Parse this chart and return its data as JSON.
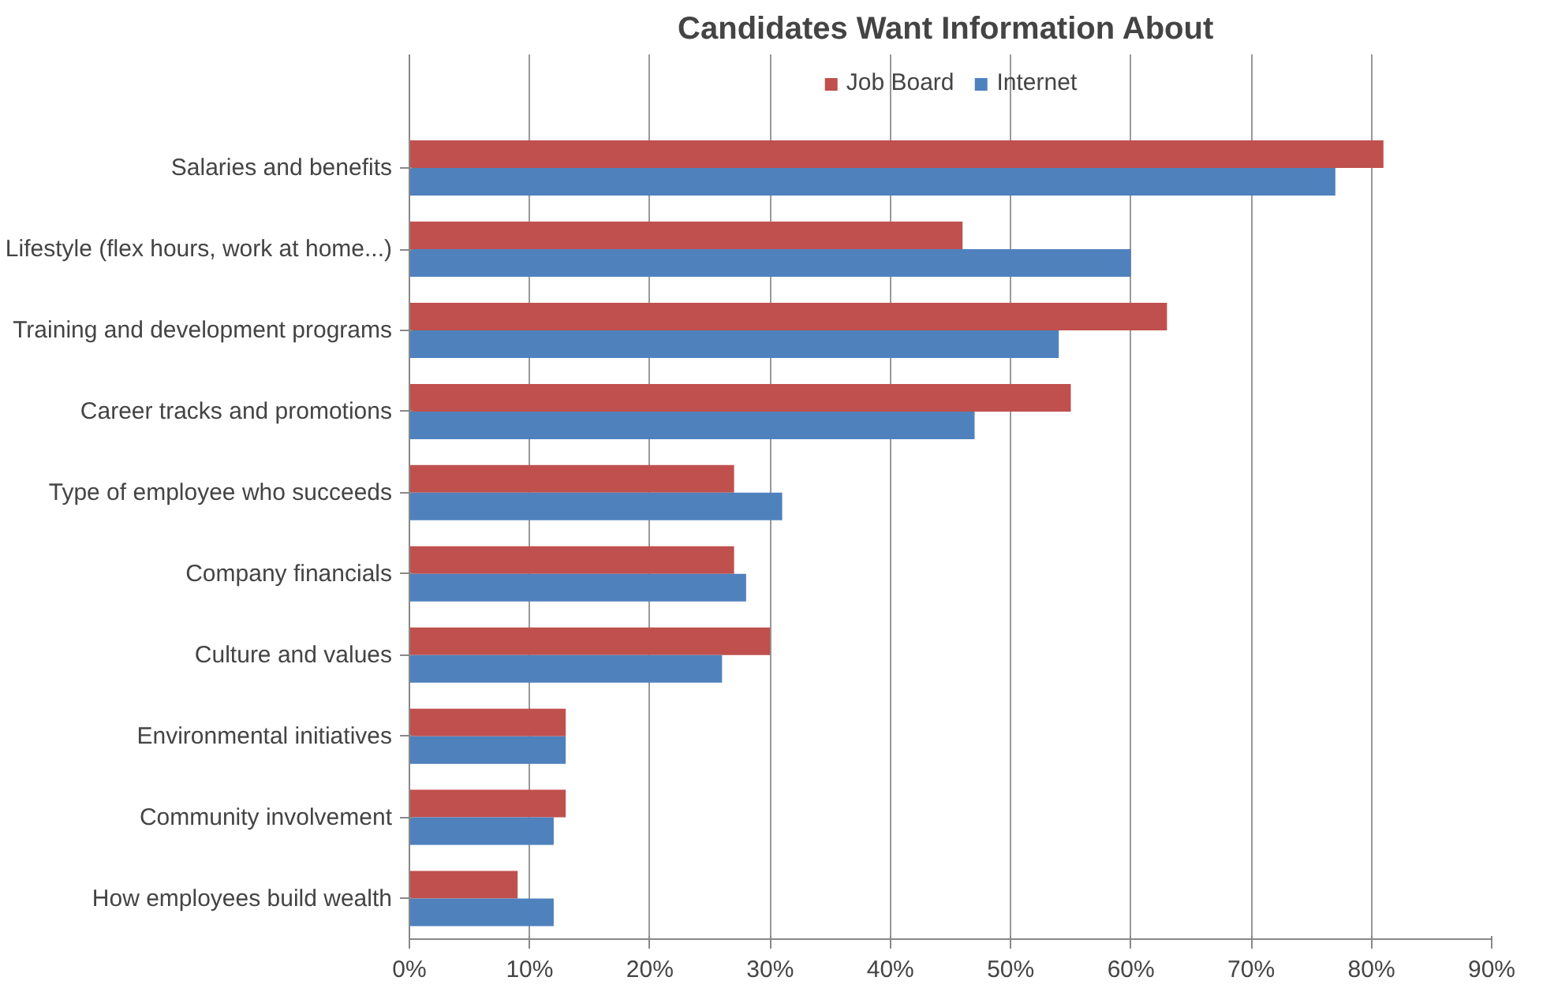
{
  "chart_data": {
    "type": "bar",
    "orientation": "horizontal",
    "title": "Candidates Want  Information About",
    "categories": [
      "Salaries and benefits",
      "Lifestyle (flex hours, work at home...)",
      "Training and development programs",
      "Career tracks and promotions",
      "Type of employee who succeeds",
      "Company financials",
      "Culture and values",
      "Environmental initiatives",
      "Community involvement",
      "How employees build wealth"
    ],
    "series": [
      {
        "name": "Job Board",
        "color": "#c0504d",
        "values": [
          81,
          46,
          63,
          55,
          27,
          27,
          30,
          13,
          13,
          9
        ]
      },
      {
        "name": "Internet",
        "color": "#4f81bd",
        "values": [
          77,
          60,
          54,
          47,
          31,
          28,
          26,
          13,
          12,
          12
        ]
      }
    ],
    "xlim": [
      0,
      90
    ],
    "xticks": [
      {
        "value": 0,
        "label": "0%"
      },
      {
        "value": 10,
        "label": "10%"
      },
      {
        "value": 20,
        "label": "20%"
      },
      {
        "value": 30,
        "label": "30%"
      },
      {
        "value": 40,
        "label": "40%"
      },
      {
        "value": 50,
        "label": "50%"
      },
      {
        "value": 60,
        "label": "60%"
      },
      {
        "value": 70,
        "label": "70%"
      },
      {
        "value": 80,
        "label": "80%"
      },
      {
        "value": 90,
        "label": "90%"
      }
    ],
    "grid": "x",
    "legend": "top"
  }
}
